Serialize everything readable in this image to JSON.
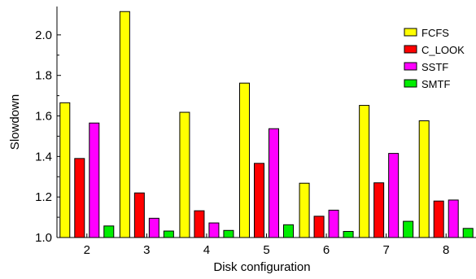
{
  "chart_data": {
    "type": "bar",
    "xlabel": "Disk configuration",
    "ylabel": "Slowdown",
    "ylim": [
      1.0,
      2.14
    ],
    "y_ticks": [
      "1.0",
      "1.2",
      "1.4",
      "1.6",
      "1.8",
      "2.0"
    ],
    "categories": [
      "2",
      "3",
      "4",
      "5",
      "6",
      "7",
      "8"
    ],
    "legend_position": "top-right",
    "grid": false,
    "series": [
      {
        "name": "FCFS",
        "color": "#ffff00",
        "values": [
          1.665,
          2.115,
          1.618,
          1.762,
          1.268,
          1.652,
          1.576
        ]
      },
      {
        "name": "C_LOOK",
        "color": "#ff0000",
        "values": [
          1.39,
          1.22,
          1.132,
          1.366,
          1.105,
          1.27,
          1.18
        ]
      },
      {
        "name": "SSTF",
        "color": "#ff00ff",
        "values": [
          1.565,
          1.095,
          1.072,
          1.537,
          1.135,
          1.415,
          1.185
        ]
      },
      {
        "name": "SMTF",
        "color": "#00ee00",
        "values": [
          1.057,
          1.032,
          1.035,
          1.063,
          1.03,
          1.08,
          1.045
        ]
      }
    ]
  }
}
